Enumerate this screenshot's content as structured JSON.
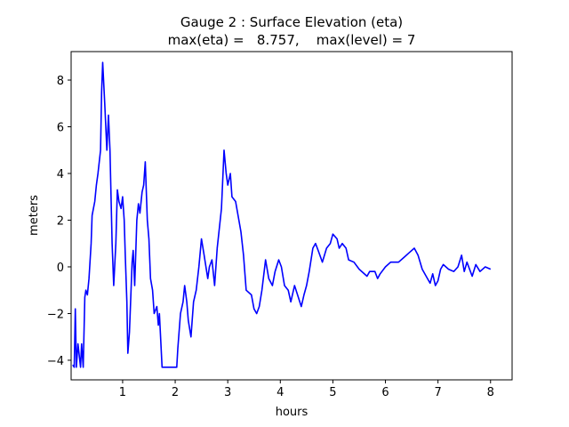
{
  "chart_data": {
    "type": "line",
    "title": "Gauge 2 : Surface Elevation (eta)",
    "subtitle": "max(eta) =   8.757,    max(level) = 7",
    "x_label": "hours",
    "y_label": "meters",
    "color": "#0000ff",
    "xlim": [
      0.02,
      8.41
    ],
    "ylim": [
      -4.84,
      9.22
    ],
    "xticks": [
      1,
      2,
      3,
      4,
      5,
      6,
      7,
      8
    ],
    "yticks": [
      {
        "value": -4,
        "label": "−4"
      },
      {
        "value": -2,
        "label": "−2"
      },
      0,
      2,
      4,
      6,
      8
    ],
    "x": [
      0.05,
      0.08,
      0.1,
      0.12,
      0.15,
      0.2,
      0.22,
      0.25,
      0.28,
      0.3,
      0.33,
      0.36,
      0.4,
      0.42,
      0.47,
      0.5,
      0.53,
      0.58,
      0.6,
      0.62,
      0.66,
      0.7,
      0.73,
      0.76,
      0.8,
      0.83,
      0.87,
      0.9,
      0.93,
      0.97,
      1.0,
      1.03,
      1.05,
      1.08,
      1.1,
      1.13,
      1.18,
      1.2,
      1.23,
      1.27,
      1.3,
      1.33,
      1.37,
      1.4,
      1.43,
      1.47,
      1.5,
      1.53,
      1.57,
      1.6,
      1.65,
      1.68,
      1.7,
      1.75,
      1.8,
      2.03,
      2.05,
      2.1,
      2.15,
      2.18,
      2.22,
      2.25,
      2.3,
      2.35,
      2.4,
      2.45,
      2.5,
      2.55,
      2.62,
      2.65,
      2.7,
      2.75,
      2.8,
      2.88,
      2.93,
      2.97,
      3.0,
      3.05,
      3.08,
      3.15,
      3.25,
      3.3,
      3.35,
      3.45,
      3.5,
      3.55,
      3.6,
      3.65,
      3.72,
      3.78,
      3.85,
      3.9,
      3.97,
      4.02,
      4.08,
      4.15,
      4.2,
      4.27,
      4.3,
      4.4,
      4.45,
      4.5,
      4.55,
      4.62,
      4.67,
      4.72,
      4.8,
      4.88,
      4.95,
      5.0,
      5.08,
      5.12,
      5.18,
      5.25,
      5.3,
      5.4,
      5.5,
      5.65,
      5.7,
      5.8,
      5.85,
      5.9,
      6.0,
      6.1,
      6.25,
      6.35,
      6.45,
      6.55,
      6.62,
      6.7,
      6.8,
      6.85,
      6.9,
      6.95,
      7.0,
      7.05,
      7.1,
      7.2,
      7.3,
      7.38,
      7.45,
      7.5,
      7.55,
      7.65,
      7.72,
      7.8,
      7.9,
      8.0
    ],
    "values": [
      -4.2,
      -4.3,
      -1.8,
      -4.3,
      -3.3,
      -4.3,
      -3.3,
      -4.3,
      -1.3,
      -1.0,
      -1.2,
      -0.5,
      1.0,
      2.2,
      2.8,
      3.5,
      4.0,
      5.0,
      7.5,
      8.757,
      7.0,
      5.0,
      6.5,
      5.0,
      1.0,
      -0.8,
      1.0,
      3.3,
      2.8,
      2.5,
      3.0,
      2.0,
      0.5,
      -1.5,
      -3.7,
      -2.8,
      0.2,
      0.7,
      -0.8,
      2.0,
      2.7,
      2.3,
      3.2,
      3.5,
      4.5,
      2.0,
      1.2,
      -0.5,
      -1.0,
      -2.0,
      -1.7,
      -2.5,
      -2.0,
      -4.3,
      -4.3,
      -4.3,
      -3.5,
      -2.0,
      -1.5,
      -0.8,
      -1.5,
      -2.3,
      -3.0,
      -1.5,
      -1.0,
      0.0,
      1.2,
      0.5,
      -0.5,
      0.0,
      0.3,
      -0.8,
      0.8,
      2.5,
      5.0,
      4.0,
      3.5,
      4.0,
      3.0,
      2.8,
      1.5,
      0.5,
      -1.0,
      -1.2,
      -1.8,
      -2.0,
      -1.7,
      -1.0,
      0.3,
      -0.5,
      -0.8,
      -0.2,
      0.3,
      0.0,
      -0.8,
      -1.0,
      -1.5,
      -0.8,
      -1.0,
      -1.7,
      -1.2,
      -0.8,
      -0.2,
      0.8,
      1.0,
      0.7,
      0.2,
      0.8,
      1.0,
      1.4,
      1.2,
      0.8,
      1.0,
      0.8,
      0.3,
      0.2,
      -0.1,
      -0.4,
      -0.2,
      -0.2,
      -0.5,
      -0.3,
      0.0,
      0.2,
      0.2,
      0.4,
      0.6,
      0.8,
      0.5,
      -0.1,
      -0.5,
      -0.7,
      -0.3,
      -0.8,
      -0.6,
      -0.1,
      0.1,
      -0.1,
      -0.2,
      0.0,
      0.5,
      -0.2,
      0.2,
      -0.4,
      0.1,
      -0.2,
      0.0,
      -0.1
    ]
  }
}
